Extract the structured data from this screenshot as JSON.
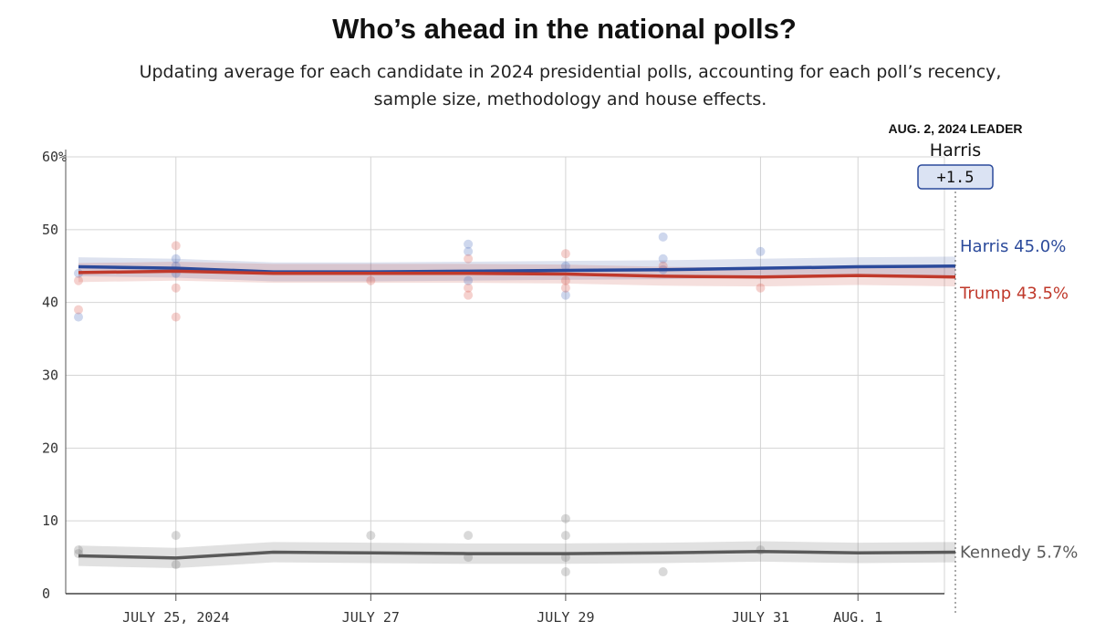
{
  "chart_data": {
    "type": "line",
    "title": "Who’s ahead in the national polls?",
    "subtitle": "Updating average for each candidate in 2024 presidential polls, accounting for each poll’s recency, sample size, methodology and house effects.",
    "ylim": [
      0,
      60
    ],
    "y_ticks": [
      0,
      10,
      20,
      30,
      40,
      50,
      60
    ],
    "y_tick_labels": [
      "0",
      "10",
      "20",
      "30",
      "40",
      "50",
      "60%"
    ],
    "x_range": [
      "2024-07-24",
      "2024-08-02"
    ],
    "x_ticks": [
      {
        "date": "2024-07-25",
        "label": "JULY 25, 2024"
      },
      {
        "date": "2024-07-27",
        "label": "JULY 27"
      },
      {
        "date": "2024-07-29",
        "label": "JULY 29"
      },
      {
        "date": "2024-07-31",
        "label": "JULY 31"
      },
      {
        "date": "2024-08-01",
        "label": "AUG. 1"
      }
    ],
    "grid": true,
    "series": [
      {
        "name": "Harris",
        "color": "#2b4a9b",
        "end_label": "Harris 45.0%",
        "band": 1.3,
        "x": [
          "2024-07-24",
          "2024-07-25",
          "2024-07-26",
          "2024-07-27",
          "2024-07-28",
          "2024-07-29",
          "2024-07-30",
          "2024-07-31",
          "2024-08-01",
          "2024-08-02"
        ],
        "y": [
          44.9,
          44.7,
          44.2,
          44.2,
          44.3,
          44.4,
          44.5,
          44.7,
          44.9,
          45.0
        ],
        "polls": [
          [
            "2024-07-24",
            38
          ],
          [
            "2024-07-24",
            44
          ],
          [
            "2024-07-25",
            46
          ],
          [
            "2024-07-25",
            45
          ],
          [
            "2024-07-25",
            44
          ],
          [
            "2024-07-28",
            48
          ],
          [
            "2024-07-28",
            47
          ],
          [
            "2024-07-28",
            43
          ],
          [
            "2024-07-29",
            41
          ],
          [
            "2024-07-29",
            45
          ],
          [
            "2024-07-30",
            49
          ],
          [
            "2024-07-30",
            46
          ],
          [
            "2024-07-30",
            44.5
          ],
          [
            "2024-07-31",
            47
          ]
        ]
      },
      {
        "name": "Trump",
        "color": "#c0392b",
        "end_label": "Trump 43.5%",
        "band": 1.3,
        "x": [
          "2024-07-24",
          "2024-07-25",
          "2024-07-26",
          "2024-07-27",
          "2024-07-28",
          "2024-07-29",
          "2024-07-30",
          "2024-07-31",
          "2024-08-01",
          "2024-08-02"
        ],
        "y": [
          44.1,
          44.3,
          44.0,
          44.0,
          44.0,
          43.9,
          43.6,
          43.5,
          43.7,
          43.5
        ],
        "polls": [
          [
            "2024-07-24",
            39
          ],
          [
            "2024-07-24",
            43
          ],
          [
            "2024-07-25",
            47.8
          ],
          [
            "2024-07-25",
            42
          ],
          [
            "2024-07-25",
            38
          ],
          [
            "2024-07-27",
            43
          ],
          [
            "2024-07-28",
            46
          ],
          [
            "2024-07-28",
            42
          ],
          [
            "2024-07-28",
            41
          ],
          [
            "2024-07-29",
            46.7
          ],
          [
            "2024-07-29",
            43
          ],
          [
            "2024-07-29",
            42
          ],
          [
            "2024-07-30",
            45
          ],
          [
            "2024-07-31",
            42
          ]
        ]
      },
      {
        "name": "Kennedy",
        "color": "#5a5a5a",
        "end_label": "Kennedy 5.7%",
        "band": 1.4,
        "x": [
          "2024-07-24",
          "2024-07-25",
          "2024-07-26",
          "2024-07-27",
          "2024-07-28",
          "2024-07-29",
          "2024-07-30",
          "2024-07-31",
          "2024-08-01",
          "2024-08-02"
        ],
        "y": [
          5.2,
          4.9,
          5.7,
          5.6,
          5.5,
          5.5,
          5.6,
          5.8,
          5.6,
          5.7
        ],
        "polls": [
          [
            "2024-07-24",
            6
          ],
          [
            "2024-07-24",
            5.5
          ],
          [
            "2024-07-25",
            8
          ],
          [
            "2024-07-25",
            4
          ],
          [
            "2024-07-27",
            8
          ],
          [
            "2024-07-28",
            8
          ],
          [
            "2024-07-28",
            5
          ],
          [
            "2024-07-29",
            10.3
          ],
          [
            "2024-07-29",
            8
          ],
          [
            "2024-07-29",
            5
          ],
          [
            "2024-07-29",
            3
          ],
          [
            "2024-07-30",
            3
          ],
          [
            "2024-07-31",
            6
          ]
        ]
      }
    ],
    "leader": {
      "heading": "AUG. 2, 2024 LEADER",
      "name": "Harris",
      "margin": "+1.5"
    }
  }
}
